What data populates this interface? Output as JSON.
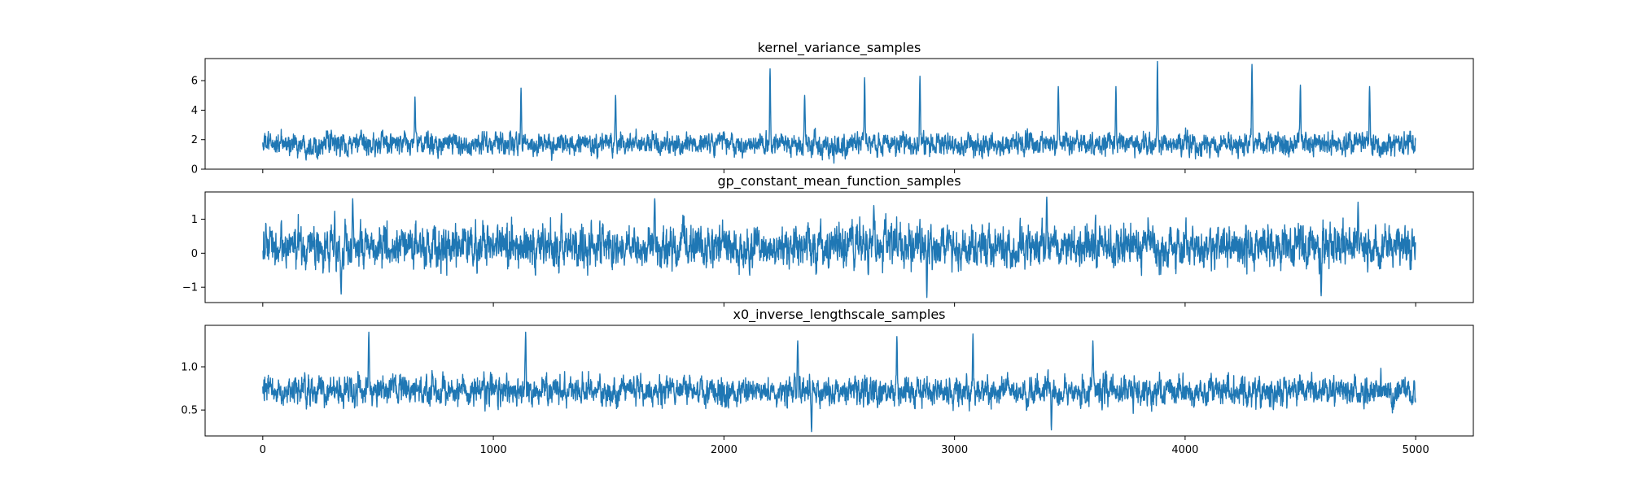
{
  "chart_data": [
    {
      "type": "line",
      "title": "kernel_variance_samples",
      "xlabel": "",
      "ylabel": "",
      "x_range": [
        0,
        4999
      ],
      "xlim": [
        -250,
        5250
      ],
      "ylim": [
        0,
        7.5
      ],
      "yticks": [
        0,
        2,
        4,
        6
      ],
      "ytick_labels": [
        "0",
        "2",
        "4",
        "6"
      ],
      "xticks": [
        0,
        1000,
        2000,
        3000,
        4000,
        5000
      ],
      "xtick_labels": [],
      "color": "#1f77b4",
      "grid": false,
      "trace": {
        "n": 5000,
        "baseline": 1.7,
        "noise": 0.55,
        "min": 0.2,
        "max": 7.3
      },
      "peaks": [
        {
          "x": 660,
          "y": 4.9
        },
        {
          "x": 1120,
          "y": 5.5
        },
        {
          "x": 1530,
          "y": 5.0
        },
        {
          "x": 2200,
          "y": 6.8
        },
        {
          "x": 2350,
          "y": 5.0
        },
        {
          "x": 2610,
          "y": 6.2
        },
        {
          "x": 2850,
          "y": 6.3
        },
        {
          "x": 3450,
          "y": 5.6
        },
        {
          "x": 3700,
          "y": 5.6
        },
        {
          "x": 3880,
          "y": 7.3
        },
        {
          "x": 4290,
          "y": 7.1
        },
        {
          "x": 4500,
          "y": 5.7
        },
        {
          "x": 4800,
          "y": 5.6
        }
      ]
    },
    {
      "type": "line",
      "title": "gp_constant_mean_function_samples",
      "xlabel": "",
      "ylabel": "",
      "x_range": [
        0,
        4999
      ],
      "xlim": [
        -250,
        5250
      ],
      "ylim": [
        -1.45,
        1.8
      ],
      "yticks": [
        -1,
        0,
        1
      ],
      "ytick_labels": [
        "−1",
        "0",
        "1"
      ],
      "xticks": [
        0,
        1000,
        2000,
        3000,
        4000,
        5000
      ],
      "xtick_labels": [],
      "color": "#1f77b4",
      "grid": false,
      "trace": {
        "n": 5000,
        "baseline": 0.2,
        "noise": 0.45,
        "min": -1.3,
        "max": 1.7
      },
      "peaks": [
        {
          "x": 390,
          "y": 1.6
        },
        {
          "x": 1700,
          "y": 1.6
        },
        {
          "x": 2650,
          "y": 1.4
        },
        {
          "x": 3400,
          "y": 1.65
        },
        {
          "x": 4750,
          "y": 1.5
        },
        {
          "x": 340,
          "y": -1.2
        },
        {
          "x": 2880,
          "y": -1.3
        },
        {
          "x": 4590,
          "y": -1.25
        }
      ]
    },
    {
      "type": "line",
      "title": "x0_inverse_lengthscale_samples",
      "xlabel": "",
      "ylabel": "",
      "x_range": [
        0,
        4999
      ],
      "xlim": [
        -250,
        5250
      ],
      "ylim": [
        0.2,
        1.48
      ],
      "yticks": [
        0.5,
        1.0
      ],
      "ytick_labels": [
        "0.5",
        "1.0"
      ],
      "xticks": [
        0,
        1000,
        2000,
        3000,
        4000,
        5000
      ],
      "xtick_labels": [
        "0",
        "1000",
        "2000",
        "3000",
        "4000",
        "5000"
      ],
      "color": "#1f77b4",
      "grid": false,
      "trace": {
        "n": 5000,
        "baseline": 0.72,
        "noise": 0.12,
        "min": 0.25,
        "max": 1.42
      },
      "peaks": [
        {
          "x": 460,
          "y": 1.4
        },
        {
          "x": 1140,
          "y": 1.4
        },
        {
          "x": 2320,
          "y": 1.3
        },
        {
          "x": 2750,
          "y": 1.35
        },
        {
          "x": 3080,
          "y": 1.38
        },
        {
          "x": 3600,
          "y": 1.3
        },
        {
          "x": 2380,
          "y": 0.25
        },
        {
          "x": 3420,
          "y": 0.27
        }
      ]
    }
  ]
}
